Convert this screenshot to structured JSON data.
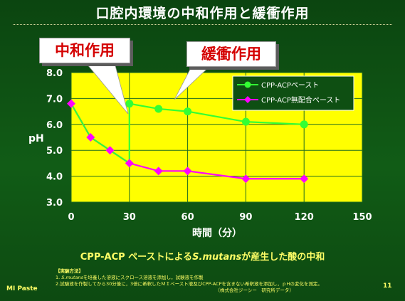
{
  "slide": {
    "title": "口腔内環境の中和作用と緩衝作用",
    "callout_neutralize": "中和作用",
    "callout_buffer": "緩衝作用",
    "caption_prefix": "CPP-ACP ペーストによる",
    "caption_species": "S.mutans",
    "caption_suffix": "が産生した酸の中和",
    "method_heading": "【実験方法】",
    "method_1_num": "1. ",
    "method_1_species": "S.mutans",
    "method_1_rest": "を培養した溶液にスクロース溶液を添加し，試験液を作製",
    "method_2": "2.試験液を作製してから30分後に，3倍に希釈したＭＩペースト液及びCPP-ACPを含まない希釈液を添加し，ｐHの変化を測定。",
    "method_source": "（株式会社ジーシー　研究所データ）",
    "footer_left": "MI Paste",
    "page_number": "11"
  },
  "colors": {
    "background": "#0e4f12",
    "plot_bg": "#ffff00",
    "grid": "#1f6b1f",
    "cpp": "#33ff33",
    "no_cpp": "#ff00ff",
    "callout_text": "#d40000",
    "caption": "#ffff66"
  },
  "chart_data": {
    "type": "line",
    "xlabel": "時間（分）",
    "ylabel": "pH",
    "xlim": [
      0,
      150
    ],
    "ylim": [
      3.0,
      8.0
    ],
    "x_ticks": [
      0,
      30,
      60,
      90,
      120,
      150
    ],
    "y_ticks": [
      "8.0",
      "7.0",
      "6.0",
      "5.0",
      "4.0",
      "3.0"
    ],
    "grid": true,
    "legend_position": "top-right",
    "series": [
      {
        "name": "CPP-ACPペースト",
        "color": "#33ff33",
        "points": [
          [
            0,
            6.8
          ],
          [
            10,
            5.5
          ],
          [
            20,
            5.0
          ],
          [
            30,
            4.5
          ],
          [
            30,
            6.8
          ],
          [
            45,
            6.6
          ],
          [
            60,
            6.5
          ],
          [
            90,
            6.1
          ],
          [
            120,
            6.0
          ]
        ]
      },
      {
        "name": "CPP-ACP無配合ペースト",
        "color": "#ff00ff",
        "points": [
          [
            0,
            6.8
          ],
          [
            10,
            5.5
          ],
          [
            20,
            5.0
          ],
          [
            30,
            4.5
          ],
          [
            45,
            4.2
          ],
          [
            60,
            4.2
          ],
          [
            90,
            3.9
          ],
          [
            120,
            3.9
          ]
        ]
      }
    ]
  }
}
